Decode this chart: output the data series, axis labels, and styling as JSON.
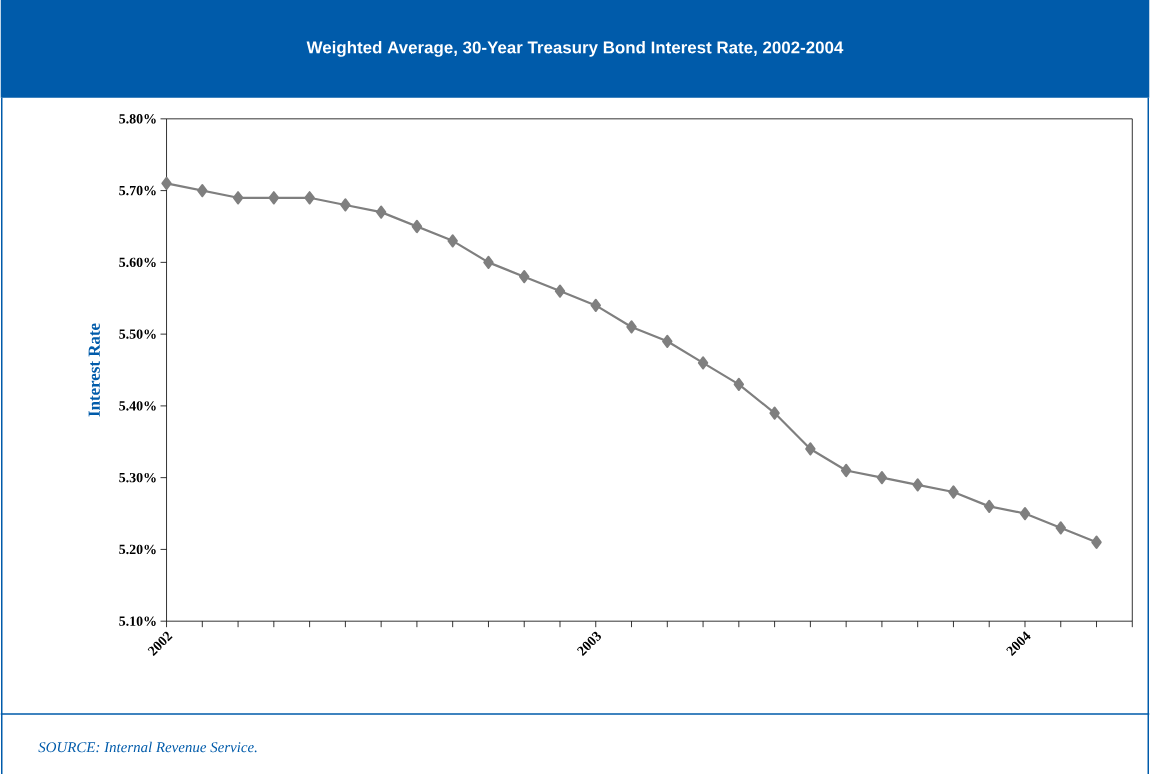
{
  "chart_data": {
    "type": "line",
    "title": "Weighted Average, 30-Year Treasury Bond Interest Rate, 2002-2004",
    "ylabel": "Interest Rate",
    "annotations": [
      "SOURCE: Internal Revenue Service."
    ],
    "x": [
      "2002-01",
      "2002-02",
      "2002-03",
      "2002-04",
      "2002-05",
      "2002-06",
      "2002-07",
      "2002-08",
      "2002-09",
      "2002-10",
      "2002-11",
      "2002-12",
      "2003-01",
      "2003-02",
      "2003-03",
      "2003-04",
      "2003-05",
      "2003-06",
      "2003-07",
      "2003-08",
      "2003-09",
      "2003-10",
      "2003-11",
      "2003-12",
      "2004-01",
      "2004-02",
      "2004-03"
    ],
    "series": [
      {
        "color": "#7f7f7f",
        "values": [
          5.71,
          5.7,
          5.69,
          5.69,
          5.69,
          5.68,
          5.67,
          5.65,
          5.63,
          5.6,
          5.58,
          5.56,
          5.54,
          5.51,
          5.49,
          5.46,
          5.43,
          5.39,
          5.34,
          5.31,
          5.3,
          5.29,
          5.28,
          5.26,
          5.25,
          5.23,
          5.21
        ]
      }
    ],
    "marker": "diamond",
    "line_style": "solid",
    "grid": false,
    "xlim": [
      "2002-01",
      "2004-04"
    ],
    "xticks": [
      {
        "value": "2002-01",
        "label": "2002"
      },
      {
        "value": "2002-02",
        "label": null
      },
      {
        "value": "2002-03",
        "label": null
      },
      {
        "value": "2002-04",
        "label": null
      },
      {
        "value": "2002-05",
        "label": null
      },
      {
        "value": "2002-06",
        "label": null
      },
      {
        "value": "2002-07",
        "label": null
      },
      {
        "value": "2002-08",
        "label": null
      },
      {
        "value": "2002-09",
        "label": null
      },
      {
        "value": "2002-10",
        "label": null
      },
      {
        "value": "2002-11",
        "label": null
      },
      {
        "value": "2002-12",
        "label": null
      },
      {
        "value": "2003-01",
        "label": "2003"
      },
      {
        "value": "2003-02",
        "label": null
      },
      {
        "value": "2003-03",
        "label": null
      },
      {
        "value": "2003-04",
        "label": null
      },
      {
        "value": "2003-05",
        "label": null
      },
      {
        "value": "2003-06",
        "label": null
      },
      {
        "value": "2003-07",
        "label": null
      },
      {
        "value": "2003-08",
        "label": null
      },
      {
        "value": "2003-09",
        "label": null
      },
      {
        "value": "2003-10",
        "label": null
      },
      {
        "value": "2003-11",
        "label": null
      },
      {
        "value": "2003-12",
        "label": null
      },
      {
        "value": "2004-01",
        "label": "2004"
      },
      {
        "value": "2004-02",
        "label": null
      },
      {
        "value": "2004-03",
        "label": null
      },
      {
        "value": "2004-04",
        "label": null
      }
    ],
    "ylim": [
      5.1,
      5.8
    ],
    "yticks": [
      {
        "value": 5.1,
        "label": "5.10%"
      },
      {
        "value": 5.2,
        "label": "5.20%"
      },
      {
        "value": 5.3,
        "label": "5.30%"
      },
      {
        "value": 5.4,
        "label": "5.40%"
      },
      {
        "value": 5.5,
        "label": "5.50%"
      },
      {
        "value": 5.6,
        "label": "5.60%"
      },
      {
        "value": 5.7,
        "label": "5.70%"
      },
      {
        "value": 5.8,
        "label": "5.80%"
      }
    ]
  }
}
